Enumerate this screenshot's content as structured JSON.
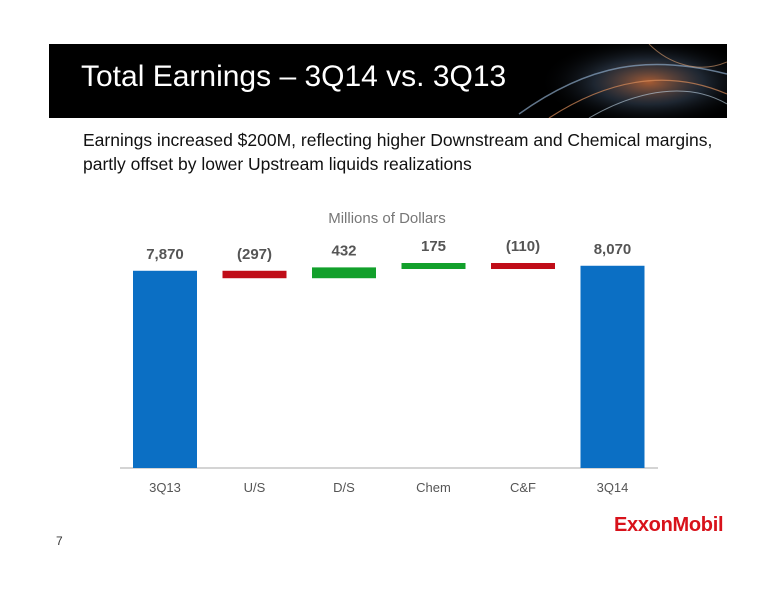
{
  "slide": {
    "title": "Total Earnings – 3Q14 vs. 3Q13",
    "subtitle": "Earnings increased $200M, reflecting higher Downstream and Chemical margins, partly offset by lower Upstream liquids realizations",
    "page_number": "7",
    "logo_text": "ExxonMobil"
  },
  "colors": {
    "total": "#0b6fc4",
    "increase": "#12a02b",
    "decrease": "#c00d18",
    "label": "#555555",
    "axis": "#aaaaaa",
    "header_bg": "#000000"
  },
  "chart_data": {
    "type": "bar",
    "subtype": "waterfall",
    "title": "Millions of Dollars",
    "categories": [
      "3Q13",
      "U/S",
      "D/S",
      "Chem",
      "C&F",
      "3Q14"
    ],
    "values": [
      7870,
      -297,
      432,
      175,
      -110,
      8070
    ],
    "value_labels": [
      "7,870",
      "(297)",
      "432",
      "175",
      "(110)",
      "8,070"
    ],
    "kinds": [
      "total",
      "decrease",
      "increase",
      "increase",
      "decrease",
      "total"
    ],
    "ylim": [
      0,
      8300
    ],
    "grid": false,
    "legend": "none"
  }
}
